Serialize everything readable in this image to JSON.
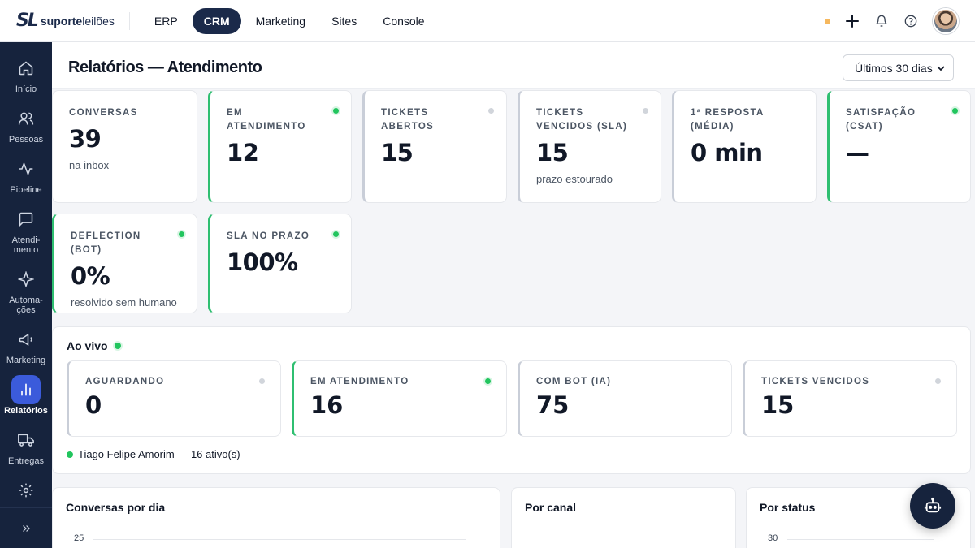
{
  "brand": {
    "mark": "SL",
    "name_bold": "suporte",
    "name_rest": "leilões"
  },
  "topnav": [
    {
      "label": "ERP",
      "active": false
    },
    {
      "label": "CRM",
      "active": true
    },
    {
      "label": "Marketing",
      "active": false
    },
    {
      "label": "Sites",
      "active": false
    },
    {
      "label": "Console",
      "active": false
    }
  ],
  "topbar_icons": [
    "status-dot",
    "plus-icon",
    "bell-icon",
    "help-icon",
    "avatar"
  ],
  "sidebar": [
    {
      "label": "Início",
      "icon": "home-icon"
    },
    {
      "label": "Pessoas",
      "icon": "people-icon"
    },
    {
      "label": "Pipeline",
      "icon": "pulse-icon"
    },
    {
      "label": "Atendi-\nmento",
      "icon": "chat-icon"
    },
    {
      "label": "Automa-\nções",
      "icon": "sparkle-icon"
    },
    {
      "label": "Marketing",
      "icon": "megaphone-icon"
    },
    {
      "label": "Relatórios",
      "icon": "bar-chart-icon",
      "active": true
    },
    {
      "label": "Entregas",
      "icon": "truck-icon"
    },
    {
      "label": "",
      "icon": "gear-icon"
    }
  ],
  "page": {
    "title": "Relatórios — Atendimento",
    "period": "Últimos 30 dias"
  },
  "kpis": [
    {
      "label": "CONVERSAS",
      "value": "39",
      "sub": "na inbox",
      "accent": "none",
      "dot": "none"
    },
    {
      "label": "EM ATENDIMENTO",
      "value": "12",
      "sub": "",
      "accent": "green",
      "dot": "green"
    },
    {
      "label": "TICKETS ABERTOS",
      "value": "15",
      "sub": "",
      "accent": "gray",
      "dot": "gray"
    },
    {
      "label": "TICKETS VENCIDOS (SLA)",
      "value": "15",
      "sub": "prazo estourado",
      "accent": "gray",
      "dot": "gray"
    },
    {
      "label": "1ª RESPOSTA (MÉDIA)",
      "value": "0 min",
      "sub": "",
      "accent": "gray",
      "dot": "none"
    },
    {
      "label": "SATISFAÇÃO (CSAT)",
      "value": "—",
      "sub": "",
      "accent": "green",
      "dot": "green"
    },
    {
      "label": "DEFLECTION (BOT)",
      "value": "0%",
      "sub": "resolvido sem humano",
      "accent": "green",
      "dot": "green"
    },
    {
      "label": "SLA NO PRAZO",
      "value": "100%",
      "sub": "",
      "accent": "green",
      "dot": "green"
    }
  ],
  "live": {
    "title": "Ao vivo",
    "cards": [
      {
        "label": "AGUARDANDO",
        "value": "0",
        "accent": "gray",
        "dot": "gray"
      },
      {
        "label": "EM ATENDIMENTO",
        "value": "16",
        "accent": "green",
        "dot": "green"
      },
      {
        "label": "COM BOT (IA)",
        "value": "75",
        "accent": "gray",
        "dot": "none"
      },
      {
        "label": "TICKETS VENCIDOS",
        "value": "15",
        "accent": "gray",
        "dot": "gray"
      }
    ],
    "agent": "Tiago Felipe Amorim — 16 ativo(s)"
  },
  "charts": [
    {
      "title": "Conversas por dia",
      "tick": "25"
    },
    {
      "title": "Por canal",
      "tick": ""
    },
    {
      "title": "Por status",
      "tick": "30"
    }
  ],
  "colors": {
    "navy": "#16233d",
    "accent_green": "#2fbf71",
    "active_blue": "#3b5bdb",
    "warning": "#f6b85e"
  }
}
